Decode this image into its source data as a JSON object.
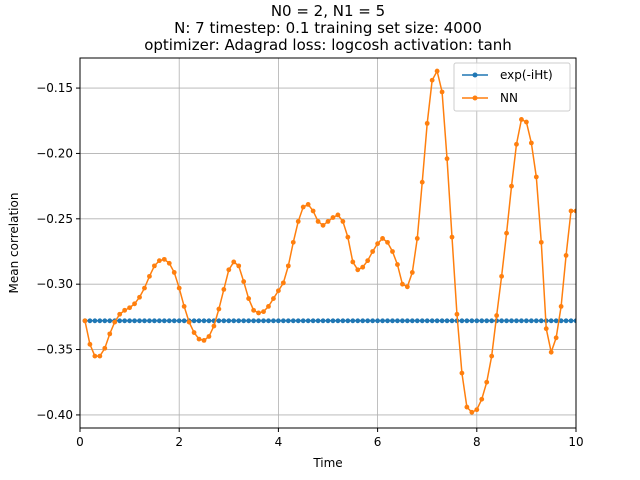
{
  "chart_data": {
    "type": "line",
    "title": [
      "N0 = 2, N1 = 5",
      "N: 7 timestep: 0.1 training set size: 4000",
      "optimizer: Adagrad loss: logcosh activation: tanh"
    ],
    "xlabel": "Time",
    "ylabel": "Mean correlation",
    "xlim": [
      0,
      10
    ],
    "ylim": [
      -0.41,
      -0.127
    ],
    "xticks": [
      0,
      2,
      4,
      6,
      8,
      10
    ],
    "xtick_labels": [
      "0",
      "2",
      "4",
      "6",
      "8",
      "10"
    ],
    "yticks": [
      -0.4,
      -0.35,
      -0.3,
      -0.25,
      -0.2,
      -0.15
    ],
    "ytick_labels": [
      "−0.40",
      "−0.35",
      "−0.30",
      "−0.25",
      "−0.20",
      "−0.15"
    ],
    "grid": true,
    "legend_position": "top-right",
    "series": [
      {
        "name": "exp(-iHt)",
        "color": "#1f77b4",
        "constant": -0.328,
        "x_start": 0.1,
        "x_step": 0.1,
        "count": 100
      },
      {
        "name": "NN",
        "color": "#ff7f0e",
        "x": [
          0.1,
          0.2,
          0.3,
          0.4,
          0.5,
          0.6,
          0.7,
          0.8,
          0.9,
          1.0,
          1.1,
          1.2,
          1.3,
          1.4,
          1.5,
          1.6,
          1.7,
          1.8,
          1.9,
          2.0,
          2.1,
          2.2,
          2.3,
          2.4,
          2.5,
          2.6,
          2.7,
          2.8,
          2.9,
          3.0,
          3.1,
          3.2,
          3.3,
          3.4,
          3.5,
          3.6,
          3.7,
          3.8,
          3.9,
          4.0,
          4.1,
          4.2,
          4.3,
          4.4,
          4.5,
          4.6,
          4.7,
          4.8,
          4.9,
          5.0,
          5.1,
          5.2,
          5.3,
          5.4,
          5.5,
          5.6,
          5.7,
          5.8,
          5.9,
          6.0,
          6.1,
          6.2,
          6.3,
          6.4,
          6.5,
          6.6,
          6.7,
          6.8,
          6.9,
          7.0,
          7.1,
          7.2,
          7.3,
          7.4,
          7.5,
          7.6,
          7.7,
          7.8,
          7.9,
          8.0,
          8.1,
          8.2,
          8.3,
          8.4,
          8.5,
          8.6,
          8.7,
          8.8,
          8.9,
          9.0,
          9.1,
          9.2,
          9.3,
          9.4,
          9.5,
          9.6,
          9.7,
          9.8,
          9.9,
          10.0
        ],
        "y": [
          -0.328,
          -0.346,
          -0.355,
          -0.355,
          -0.349,
          -0.338,
          -0.329,
          -0.323,
          -0.32,
          -0.318,
          -0.315,
          -0.31,
          -0.303,
          -0.294,
          -0.286,
          -0.282,
          -0.281,
          -0.284,
          -0.291,
          -0.303,
          -0.317,
          -0.329,
          -0.337,
          -0.342,
          -0.343,
          -0.34,
          -0.332,
          -0.319,
          -0.304,
          -0.289,
          -0.283,
          -0.286,
          -0.298,
          -0.311,
          -0.32,
          -0.322,
          -0.321,
          -0.317,
          -0.311,
          -0.305,
          -0.299,
          -0.286,
          -0.268,
          -0.252,
          -0.241,
          -0.239,
          -0.244,
          -0.252,
          -0.255,
          -0.252,
          -0.249,
          -0.247,
          -0.252,
          -0.264,
          -0.283,
          -0.289,
          -0.287,
          -0.282,
          -0.275,
          -0.269,
          -0.265,
          -0.268,
          -0.275,
          -0.285,
          -0.3,
          -0.302,
          -0.291,
          -0.265,
          -0.222,
          -0.177,
          -0.144,
          -0.137,
          -0.153,
          -0.204,
          -0.264,
          -0.323,
          -0.368,
          -0.394,
          -0.398,
          -0.396,
          -0.388,
          -0.375,
          -0.355,
          -0.324,
          -0.294,
          -0.261,
          -0.225,
          -0.193,
          -0.174,
          -0.176,
          -0.192,
          -0.218,
          -0.268,
          -0.334,
          -0.352,
          -0.341,
          -0.317,
          -0.278,
          -0.244,
          -0.244
        ]
      }
    ]
  }
}
